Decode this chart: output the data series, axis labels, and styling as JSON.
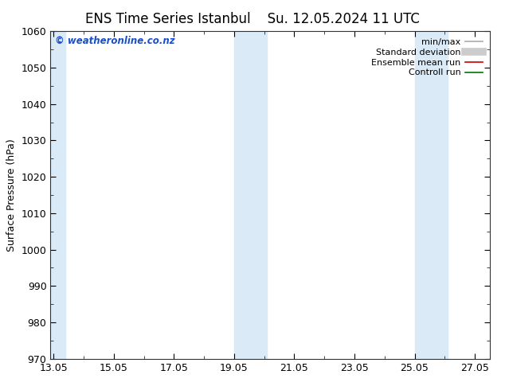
{
  "title1": "ENS Time Series Istanbul",
  "title2": "Su. 12.05.2024 11 UTC",
  "ylabel": "Surface Pressure (hPa)",
  "ylim": [
    970,
    1060
  ],
  "yticks": [
    970,
    980,
    990,
    1000,
    1010,
    1020,
    1030,
    1040,
    1050,
    1060
  ],
  "xtick_labels": [
    "13.05",
    "15.05",
    "17.05",
    "19.05",
    "21.05",
    "23.05",
    "25.05",
    "27.05"
  ],
  "xtick_positions": [
    0,
    2,
    4,
    6,
    8,
    10,
    12,
    14
  ],
  "xlim": [
    -0.1,
    14.5
  ],
  "shade_bands": [
    {
      "start": -0.1,
      "end": 0.4,
      "color": "#daeaf7"
    },
    {
      "start": 6.0,
      "end": 6.55,
      "color": "#daeaf7"
    },
    {
      "start": 6.55,
      "end": 7.1,
      "color": "#daeaf7"
    },
    {
      "start": 12.0,
      "end": 12.55,
      "color": "#daeaf7"
    },
    {
      "start": 12.55,
      "end": 13.1,
      "color": "#daeaf7"
    }
  ],
  "copyright_text": "© weatheronline.co.nz",
  "copyright_color": "#1a4fcc",
  "background_color": "#ffffff",
  "legend_items": [
    {
      "label": "min/max",
      "color": "#aaaaaa",
      "lw": 1.2,
      "type": "line"
    },
    {
      "label": "Standard deviation",
      "color": "#cccccc",
      "lw": 7,
      "type": "line"
    },
    {
      "label": "Ensemble mean run",
      "color": "#cc0000",
      "lw": 1.2,
      "type": "line"
    },
    {
      "label": "Controll run",
      "color": "#007700",
      "lw": 1.2,
      "type": "line"
    }
  ],
  "title_fontsize": 12,
  "ylabel_fontsize": 9,
  "tick_fontsize": 9,
  "legend_fontsize": 8
}
